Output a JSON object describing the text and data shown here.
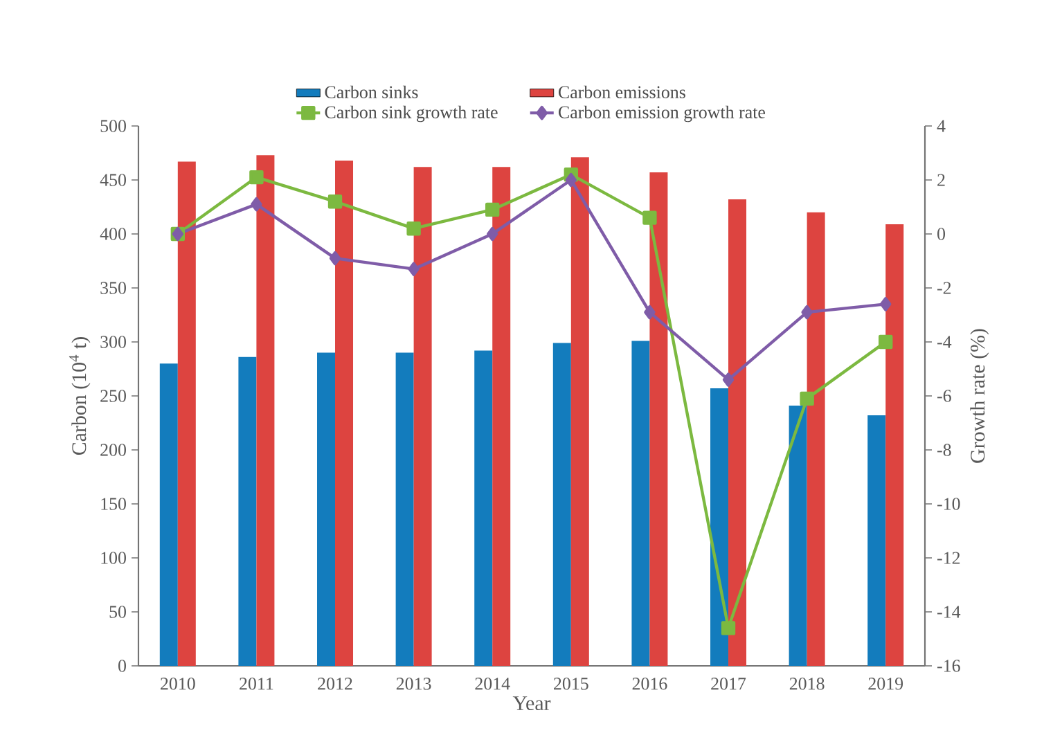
{
  "chart_data": {
    "type": "bar",
    "xlabel": "Year",
    "ylabel": "Carbon (10$^{4}$ t)",
    "y2label": "Growth rate (%)",
    "categories": [
      "2010",
      "2011",
      "2012",
      "2013",
      "2014",
      "2015",
      "2016",
      "2017",
      "2018",
      "2019"
    ],
    "ylim": [
      0,
      500
    ],
    "yticks": [
      0,
      50,
      100,
      150,
      200,
      250,
      300,
      350,
      400,
      450,
      500
    ],
    "y2lim": [
      -16,
      4
    ],
    "y2ticks": [
      -16,
      -14,
      -12,
      -10,
      -8,
      -6,
      -4,
      -2,
      0,
      2,
      4
    ],
    "legend": "top",
    "series": [
      {
        "name": "Carbon sinks",
        "color": "#137cbd",
        "values": [
          280,
          286,
          290,
          290,
          292,
          299,
          301,
          257,
          241,
          232
        ]
      },
      {
        "name": "Carbon emissions",
        "color": "#dd4440",
        "values": [
          467,
          473,
          468,
          462,
          462,
          471,
          457,
          432,
          420,
          409
        ]
      },
      {
        "name": "Carbon sink growth rate",
        "type": "line",
        "axis": "y2",
        "marker": "square",
        "color": "#7cb940",
        "values": [
          0,
          2.1,
          1.2,
          0.2,
          0.9,
          2.2,
          0.6,
          -14.6,
          -6.1,
          -4.0
        ]
      },
      {
        "name": "Carbon emission growth rate",
        "type": "line",
        "axis": "y2",
        "marker": "diamond",
        "color": "#7f5ca8",
        "values": [
          0,
          1.1,
          -0.9,
          -1.3,
          0,
          2.0,
          -2.9,
          -5.4,
          -2.9,
          -2.6
        ]
      }
    ]
  }
}
